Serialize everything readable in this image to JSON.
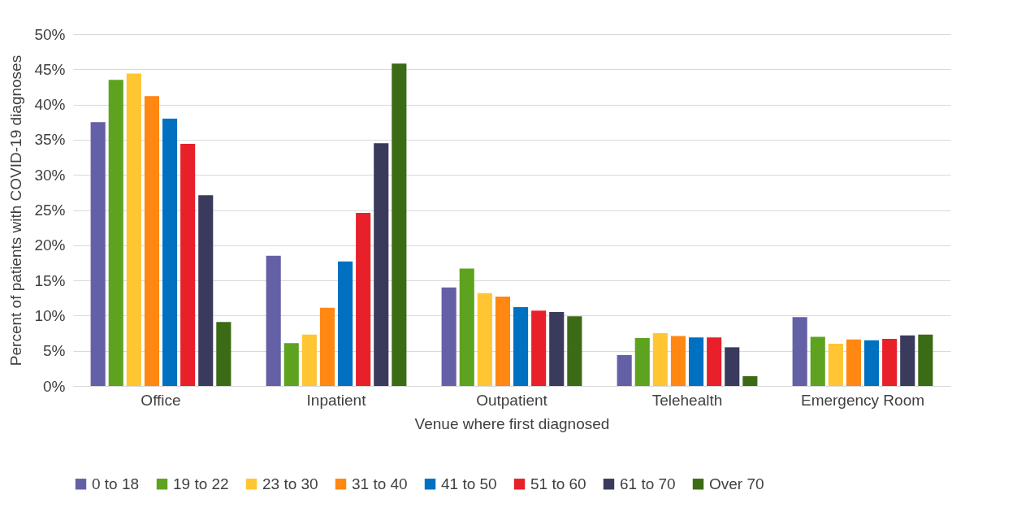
{
  "chart_data": {
    "type": "bar",
    "xlabel": "Venue where first diagnosed",
    "ylabel": "Percent of patients with COVID-19 diagnoses",
    "categories": [
      "Office",
      "Inpatient",
      "Outpatient",
      "Telehealth",
      "Emergency Room"
    ],
    "series": [
      {
        "name": "0 to 18",
        "color": "#6460a6",
        "values": [
          37.5,
          18.5,
          14.0,
          4.4,
          9.8
        ]
      },
      {
        "name": "19 to 22",
        "color": "#5ea31f",
        "values": [
          43.5,
          6.1,
          16.7,
          6.8,
          7.0
        ]
      },
      {
        "name": "23 to 30",
        "color": "#ffc532",
        "values": [
          44.4,
          7.3,
          13.2,
          7.5,
          6.0
        ]
      },
      {
        "name": "31 to 40",
        "color": "#ff8712",
        "values": [
          41.2,
          11.1,
          12.7,
          7.1,
          6.6
        ]
      },
      {
        "name": "41 to 50",
        "color": "#0070c0",
        "values": [
          38.0,
          17.7,
          11.2,
          6.9,
          6.5
        ]
      },
      {
        "name": "51 to 60",
        "color": "#e8202a",
        "values": [
          34.4,
          24.6,
          10.7,
          6.9,
          6.7
        ]
      },
      {
        "name": "61 to 70",
        "color": "#3a3a5c",
        "values": [
          27.1,
          34.5,
          10.5,
          5.5,
          7.2
        ]
      },
      {
        "name": "Over 70",
        "color": "#3b6b14",
        "values": [
          9.1,
          45.8,
          9.9,
          1.4,
          7.3
        ]
      }
    ],
    "ylim": [
      0,
      50
    ],
    "yticks": [
      {
        "value": 0,
        "label": "0%"
      },
      {
        "value": 5,
        "label": "5%"
      },
      {
        "value": 10,
        "label": "10%"
      },
      {
        "value": 15,
        "label": "15%"
      },
      {
        "value": 20,
        "label": "20%"
      },
      {
        "value": 25,
        "label": "25%"
      },
      {
        "value": 30,
        "label": "30%"
      },
      {
        "value": 35,
        "label": "35%"
      },
      {
        "value": 40,
        "label": "40%"
      },
      {
        "value": 45,
        "label": "45%"
      },
      {
        "value": 50,
        "label": "50%"
      }
    ],
    "grid": "y",
    "legend": "bottom"
  }
}
